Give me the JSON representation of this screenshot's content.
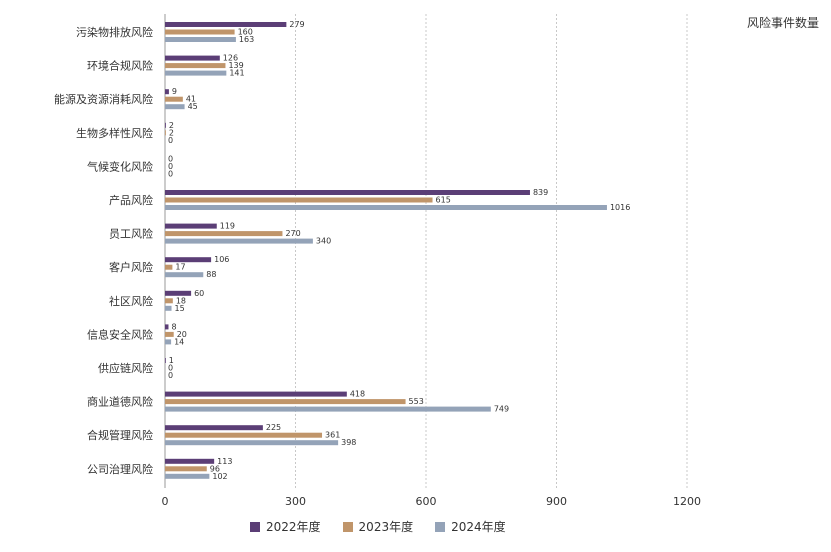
{
  "chart_data": {
    "type": "bar",
    "orientation": "horizontal",
    "unit_label": "风险事件数量",
    "categories": [
      "污染物排放风险",
      "环境合规风险",
      "能源及资源消耗风险",
      "生物多样性风险",
      "气候变化风险",
      "产品风险",
      "员工风险",
      "客户风险",
      "社区风险",
      "信息安全风险",
      "供应链风险",
      "商业道德风险",
      "合规管理风险",
      "公司治理风险"
    ],
    "series": [
      {
        "name": "2022年度",
        "color": "#5b3e76",
        "values": [
          279,
          126,
          9,
          2,
          0,
          839,
          119,
          106,
          60,
          8,
          1,
          418,
          225,
          113
        ]
      },
      {
        "name": "2023年度",
        "color": "#c0956a",
        "values": [
          160,
          139,
          41,
          2,
          0,
          615,
          270,
          17,
          18,
          20,
          0,
          553,
          361,
          96
        ]
      },
      {
        "name": "2024年度",
        "color": "#94a3b8",
        "values": [
          163,
          141,
          45,
          0,
          0,
          1016,
          340,
          88,
          15,
          14,
          0,
          749,
          398,
          102
        ]
      }
    ],
    "xlim": [
      0,
      1200
    ],
    "xticks": [
      0,
      300,
      600,
      900,
      1200
    ],
    "grid": true,
    "legend_position": "bottom"
  }
}
